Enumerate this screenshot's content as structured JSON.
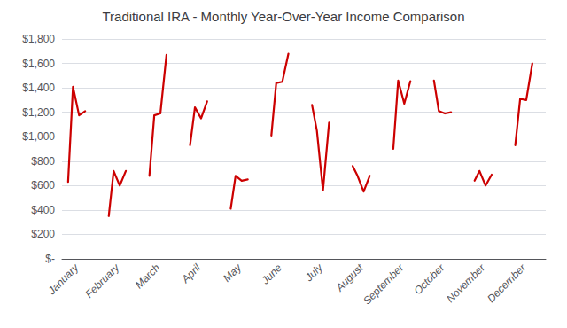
{
  "chart_data": {
    "type": "line",
    "title": "Traditional IRA - Monthly Year-Over-Year Income Comparison",
    "color": "#cc0000",
    "series": [
      {
        "x": [
          0.0,
          0.12,
          0.27,
          0.42
        ],
        "values": [
          630,
          1410,
          1175,
          1210
        ]
      },
      {
        "x": [
          1.0,
          1.12,
          1.27,
          1.42
        ],
        "values": [
          350,
          720,
          600,
          720
        ]
      },
      {
        "x": [
          2.0,
          2.12,
          2.27,
          2.42
        ],
        "values": [
          680,
          1175,
          1190,
          1670
        ]
      },
      {
        "x": [
          3.0,
          3.12,
          3.27,
          3.42
        ],
        "values": [
          930,
          1240,
          1150,
          1290
        ]
      },
      {
        "x": [
          4.0,
          4.12,
          4.27,
          4.42
        ],
        "values": [
          410,
          680,
          640,
          650
        ]
      },
      {
        "x": [
          5.0,
          5.12,
          5.27,
          5.42
        ],
        "values": [
          1010,
          1440,
          1450,
          1680
        ]
      },
      {
        "x": [
          6.0,
          6.12,
          6.27,
          6.42
        ],
        "values": [
          1260,
          1050,
          560,
          1115
        ]
      },
      {
        "x": [
          7.0,
          7.12,
          7.27,
          7.42
        ],
        "values": [
          760,
          680,
          550,
          680
        ]
      },
      {
        "x": [
          8.0,
          8.12,
          8.27,
          8.42
        ],
        "values": [
          900,
          1460,
          1270,
          1455
        ]
      },
      {
        "x": [
          9.0,
          9.12,
          9.27,
          9.42
        ],
        "values": [
          1460,
          1210,
          1190,
          1200
        ]
      },
      {
        "x": [
          10.0,
          10.12,
          10.27,
          10.42
        ],
        "values": [
          640,
          720,
          600,
          690
        ]
      },
      {
        "x": [
          11.0,
          11.12,
          11.27,
          11.42
        ],
        "values": [
          930,
          1310,
          1300,
          1600
        ]
      }
    ],
    "xlim": [
      -0.15,
      11.75
    ],
    "xticks": [
      {
        "value": 0.21,
        "label": "January"
      },
      {
        "value": 1.21,
        "label": "February"
      },
      {
        "value": 2.21,
        "label": "March"
      },
      {
        "value": 3.21,
        "label": "April"
      },
      {
        "value": 4.21,
        "label": "May"
      },
      {
        "value": 5.21,
        "label": "June"
      },
      {
        "value": 6.21,
        "label": "July"
      },
      {
        "value": 7.21,
        "label": "August"
      },
      {
        "value": 8.21,
        "label": "September"
      },
      {
        "value": 9.21,
        "label": "October"
      },
      {
        "value": 10.21,
        "label": "November"
      },
      {
        "value": 11.21,
        "label": "December"
      }
    ],
    "ylim": [
      0,
      1800
    ],
    "yticks": [
      {
        "value": 0,
        "label": "$-"
      },
      {
        "value": 200,
        "label": "$200"
      },
      {
        "value": 400,
        "label": "$400"
      },
      {
        "value": 600,
        "label": "$600"
      },
      {
        "value": 800,
        "label": "$800"
      },
      {
        "value": 1000,
        "label": "$1,000"
      },
      {
        "value": 1200,
        "label": "$1,200"
      },
      {
        "value": 1400,
        "label": "$1,400"
      },
      {
        "value": 1600,
        "label": "$1,600"
      },
      {
        "value": 1800,
        "label": "$1,800"
      }
    ],
    "grid": true
  }
}
